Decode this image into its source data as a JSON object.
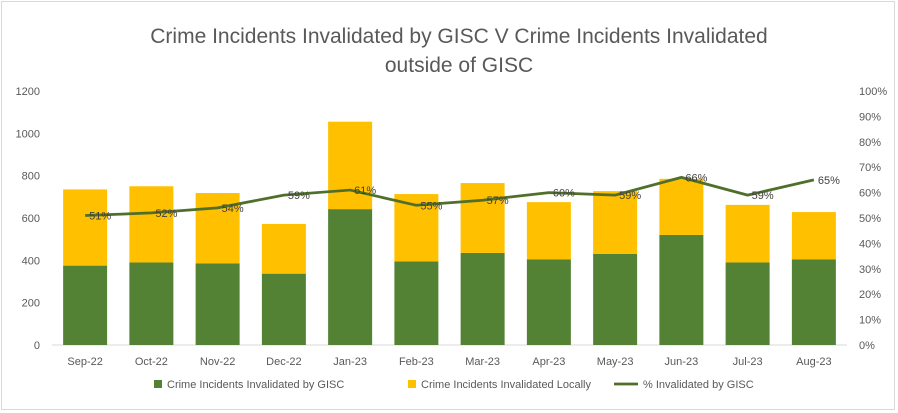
{
  "chart_data": {
    "type": "bar",
    "stacked": true,
    "title_lines": [
      "Crime Incidents Invalidated by GISC V Crime Incidents Invalidated",
      "outside of GISC"
    ],
    "categories": [
      "Sep-22",
      "Oct-22",
      "Nov-22",
      "Dec-22",
      "Jan-23",
      "Feb-23",
      "Mar-23",
      "Apr-23",
      "May-23",
      "Jun-23",
      "Jul-23",
      "Aug-23"
    ],
    "series": [
      {
        "name": "Crime Incidents Invalidated by GISC",
        "type": "bar",
        "axis": "left",
        "color": "#548235",
        "values": [
          375,
          390,
          385,
          337,
          642,
          395,
          435,
          405,
          430,
          520,
          390,
          405
        ]
      },
      {
        "name": "Crime Incidents Invalidated Locally",
        "type": "bar",
        "axis": "left",
        "color": "#ffc000",
        "values": [
          360,
          360,
          333,
          235,
          413,
          318,
          330,
          270,
          297,
          265,
          272,
          223
        ]
      },
      {
        "name": "% Invalidated by GISC",
        "type": "line",
        "axis": "right",
        "color": "#4f6f2a",
        "values": [
          51,
          52,
          54,
          59,
          61,
          55,
          57,
          60,
          59,
          66,
          59,
          65
        ],
        "labels": [
          "51%",
          "52%",
          "54%",
          "59%",
          "61%",
          "55%",
          "57%",
          "60%",
          "59%",
          "66%",
          "59%",
          "65%"
        ]
      }
    ],
    "y_left": {
      "min": 0,
      "max": 1200,
      "ticks": [
        "0",
        "200",
        "400",
        "600",
        "800",
        "1000",
        "1200"
      ]
    },
    "y_right": {
      "min": 0,
      "max": 100,
      "ticks": [
        "0%",
        "10%",
        "20%",
        "30%",
        "40%",
        "50%",
        "60%",
        "70%",
        "80%",
        "90%",
        "100%"
      ]
    },
    "legend": "bottom",
    "grid": false
  }
}
